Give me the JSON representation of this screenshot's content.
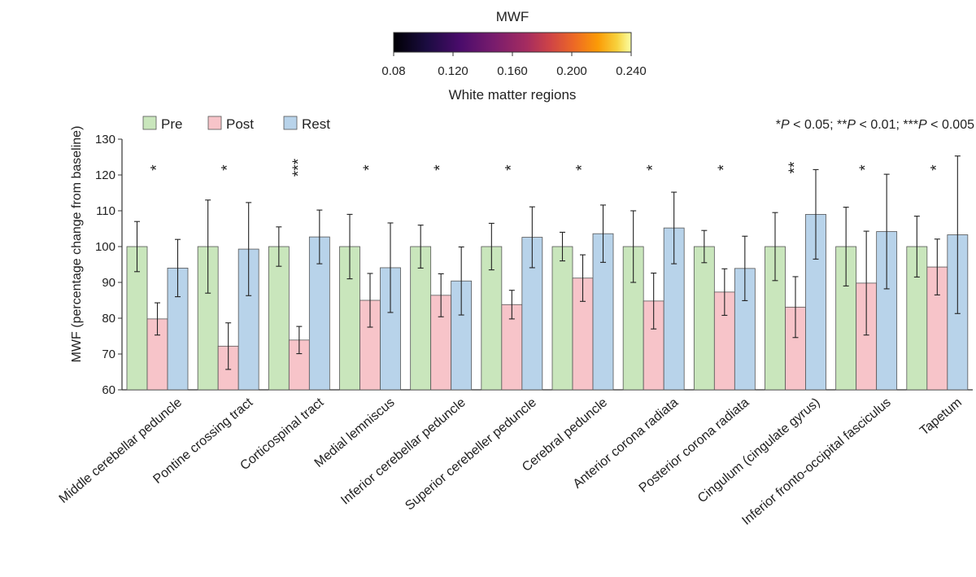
{
  "chart_data": {
    "type": "bar",
    "colorbar": {
      "title": "MWF",
      "ticks": [
        "0.08",
        "0.120",
        "0.160",
        "0.200",
        "0.240"
      ],
      "subtitle": "White matter regions"
    },
    "ylabel": "MWF (percentage change from baseline)",
    "ylim": [
      60,
      130
    ],
    "yticks": [
      60,
      70,
      80,
      90,
      100,
      110,
      120,
      130
    ],
    "significance_note": "*P < 0.05; **P < 0.01; ***P < 0.005",
    "categories": [
      "Middle cerebellar peduncle",
      "Pontine crossing tract",
      "Corticospinal tract",
      "Medial lemniscus",
      "Inferior cerebellar peduncle",
      "Superior cerebeller peduncle",
      "Cerebral peduncle",
      "Anterior corona radiata",
      "Posterior corona radiata",
      "Cingulum (cingulate gyrus)",
      "Inferior fronto-occipital fasciculus",
      "Tapetum"
    ],
    "significance": [
      "*",
      "*",
      "***",
      "*",
      "*",
      "*",
      "*",
      "*",
      "*",
      "**",
      "*",
      "*"
    ],
    "series": [
      {
        "name": "Pre",
        "color": "#c9e6bc",
        "values": [
          100,
          100,
          100,
          100,
          100,
          100,
          100,
          100,
          100,
          100,
          100,
          100
        ],
        "error": [
          7,
          13,
          5.5,
          9,
          6,
          6.5,
          4,
          10,
          4.5,
          9.5,
          11,
          8.5
        ]
      },
      {
        "name": "Post",
        "color": "#f7c4c9",
        "values": [
          79.8,
          72.2,
          73.9,
          85.0,
          86.4,
          83.8,
          91.2,
          84.8,
          87.3,
          83.1,
          89.8,
          94.3
        ],
        "error": [
          4.5,
          6.5,
          3.8,
          7.5,
          6,
          4,
          6.5,
          7.8,
          6.5,
          8.5,
          14.5,
          7.8
        ]
      },
      {
        "name": "Rest",
        "color": "#b8d3ea",
        "values": [
          94.0,
          99.3,
          102.7,
          94.1,
          90.4,
          102.6,
          103.6,
          105.2,
          93.9,
          109.0,
          104.2,
          103.3
        ],
        "error": [
          8,
          13,
          7.5,
          12.5,
          9.5,
          8.5,
          8,
          10,
          9,
          12.5,
          16,
          22
        ]
      }
    ]
  }
}
